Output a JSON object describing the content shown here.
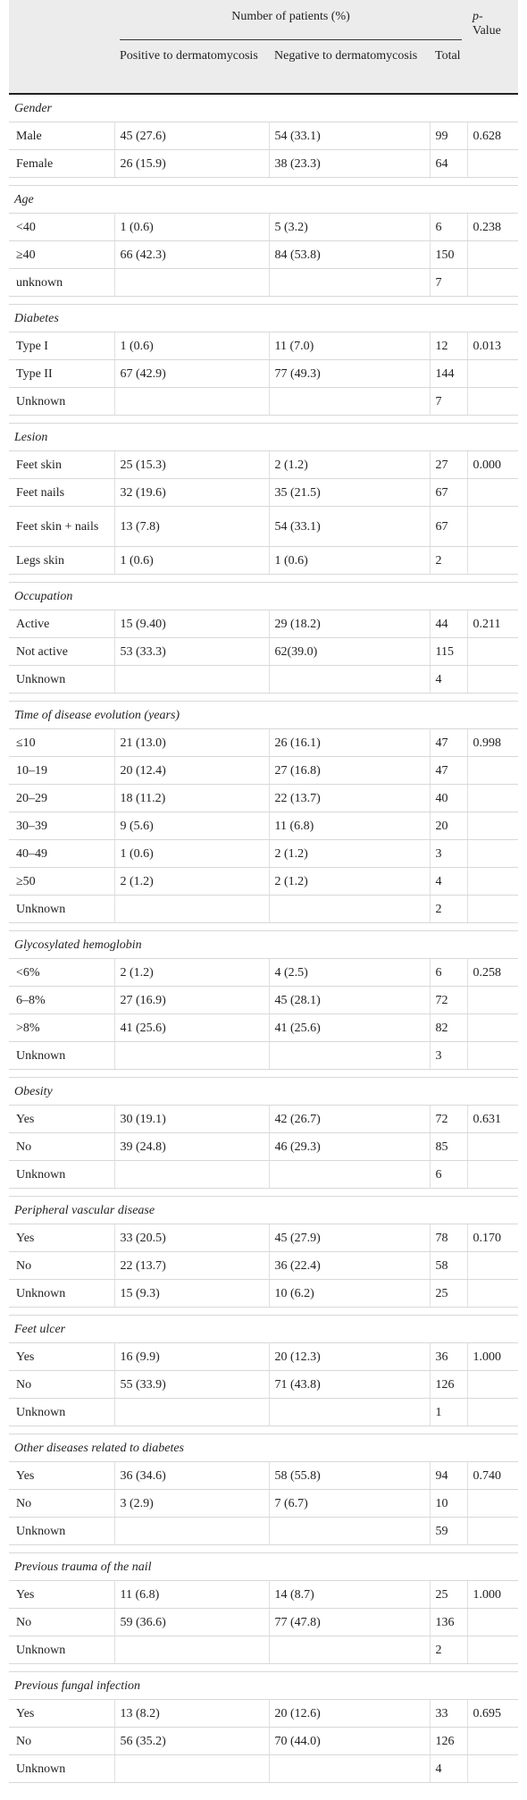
{
  "header": {
    "group_label": "Number of patients (%)",
    "pvalue_label_1": "p-",
    "pvalue_label_2": "Value",
    "col_positive": "Positive to dermatomycosis",
    "col_negative": "Negative to dermatomycosis",
    "col_total": "Total"
  },
  "sections": [
    {
      "title": "Gender",
      "rows": [
        [
          "Male",
          "45 (27.6)",
          "54 (33.1)",
          "99",
          "0.628"
        ],
        [
          "Female",
          "26 (15.9)",
          "38 (23.3)",
          "64",
          ""
        ]
      ]
    },
    {
      "title": "Age",
      "rows": [
        [
          "<40",
          "1 (0.6)",
          "5 (3.2)",
          "6",
          "0.238"
        ],
        [
          "≥40",
          "66 (42.3)",
          "84 (53.8)",
          "150",
          ""
        ],
        [
          "unknown",
          "",
          "",
          "7",
          ""
        ]
      ]
    },
    {
      "title": "Diabetes",
      "rows": [
        [
          "Type I",
          "1 (0.6)",
          "11 (7.0)",
          "12",
          "0.013"
        ],
        [
          "Type II",
          "67 (42.9)",
          "77 (49.3)",
          "144",
          ""
        ],
        [
          "Unknown",
          "",
          "",
          "7",
          ""
        ]
      ]
    },
    {
      "title": "Lesion",
      "rows": [
        [
          "Feet skin",
          "25 (15.3)",
          "2 (1.2)",
          "27",
          "0.000"
        ],
        [
          "Feet nails",
          "32 (19.6)",
          "35 (21.5)",
          "67",
          ""
        ],
        [
          "Feet skin + nails",
          "13 (7.8)",
          "54 (33.1)",
          "67",
          ""
        ],
        [
          "Legs skin",
          "1 (0.6)",
          "1 (0.6)",
          "2",
          ""
        ]
      ]
    },
    {
      "title": "Occupation",
      "rows": [
        [
          "Active",
          "15 (9.40)",
          "29 (18.2)",
          "44",
          "0.211"
        ],
        [
          "Not active",
          "53 (33.3)",
          "62(39.0)",
          "115",
          ""
        ],
        [
          "Unknown",
          "",
          "",
          "4",
          ""
        ]
      ]
    },
    {
      "title": "Time of disease evolution (years)",
      "rows": [
        [
          "≤10",
          "21 (13.0)",
          "26 (16.1)",
          "47",
          "0.998"
        ],
        [
          "10–19",
          "20 (12.4)",
          "27 (16.8)",
          "47",
          ""
        ],
        [
          "20–29",
          "18 (11.2)",
          "22 (13.7)",
          "40",
          ""
        ],
        [
          "30–39",
          "9 (5.6)",
          "11 (6.8)",
          "20",
          ""
        ],
        [
          "40–49",
          "1 (0.6)",
          "2 (1.2)",
          "3",
          ""
        ],
        [
          "≥50",
          "2 (1.2)",
          "2 (1.2)",
          "4",
          ""
        ],
        [
          "Unknown",
          "",
          "",
          "2",
          ""
        ]
      ]
    },
    {
      "title": "Glycosylated hemoglobin",
      "rows": [
        [
          "<6%",
          "2 (1.2)",
          "4 (2.5)",
          "6",
          "0.258"
        ],
        [
          "6–8%",
          "27 (16.9)",
          "45 (28.1)",
          "72",
          ""
        ],
        [
          ">8%",
          "41 (25.6)",
          "41 (25.6)",
          "82",
          ""
        ],
        [
          "Unknown",
          "",
          "",
          "3",
          ""
        ]
      ]
    },
    {
      "title": "Obesity",
      "rows": [
        [
          "Yes",
          "30 (19.1)",
          "42 (26.7)",
          "72",
          "0.631"
        ],
        [
          "No",
          "39 (24.8)",
          "46 (29.3)",
          "85",
          ""
        ],
        [
          "Unknown",
          "",
          "",
          "6",
          ""
        ]
      ]
    },
    {
      "title": "Peripheral vascular disease",
      "rows": [
        [
          "Yes",
          "33 (20.5)",
          "45 (27.9)",
          "78",
          "0.170"
        ],
        [
          "No",
          "22 (13.7)",
          "36 (22.4)",
          "58",
          ""
        ],
        [
          "Unknown",
          "15 (9.3)",
          "10 (6.2)",
          "25",
          ""
        ]
      ]
    },
    {
      "title": "Feet ulcer",
      "rows": [
        [
          "Yes",
          "16 (9.9)",
          "20 (12.3)",
          "36",
          "1.000"
        ],
        [
          "No",
          "55 (33.9)",
          "71 (43.8)",
          "126",
          ""
        ],
        [
          "Unknown",
          "",
          "",
          "1",
          ""
        ]
      ]
    },
    {
      "title": "Other diseases related to diabetes",
      "rows": [
        [
          "Yes",
          "36 (34.6)",
          "58 (55.8)",
          "94",
          "0.740"
        ],
        [
          "No",
          "3 (2.9)",
          "7 (6.7)",
          "10",
          ""
        ],
        [
          "Unknown",
          "",
          "",
          "59",
          ""
        ]
      ]
    },
    {
      "title": "Previous trauma of the nail",
      "rows": [
        [
          "Yes",
          "11 (6.8)",
          "14 (8.7)",
          "25",
          "1.000"
        ],
        [
          "No",
          "59 (36.6)",
          "77 (47.8)",
          "136",
          ""
        ],
        [
          "Unknown",
          "",
          "",
          "2",
          ""
        ]
      ]
    },
    {
      "title": "Previous fungal infection",
      "rows": [
        [
          "Yes",
          "13 (8.2)",
          "20 (12.6)",
          "33",
          "0.695"
        ],
        [
          "No",
          "56 (35.2)",
          "70 (44.0)",
          "126",
          ""
        ],
        [
          "Unknown",
          "",
          "",
          "4",
          ""
        ]
      ]
    }
  ]
}
